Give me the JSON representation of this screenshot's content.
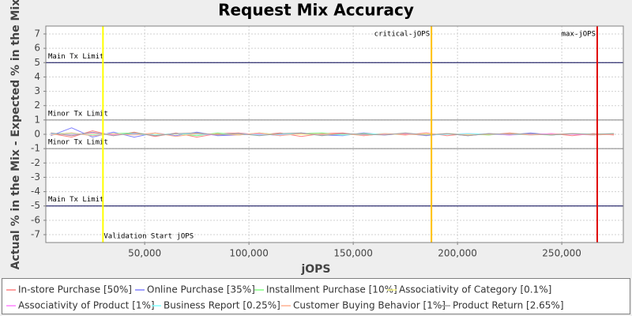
{
  "chart_data": {
    "type": "line",
    "title": "Request Mix Accuracy",
    "x_label": "jOPS",
    "y_label": "Actual % in the Mix - Expected % in the Mix",
    "xlim": [
      2600,
      279500
    ],
    "ylim": [
      -7.55,
      7.55
    ],
    "xticks": [
      {
        "value": 50000,
        "label": "50,000"
      },
      {
        "value": 100000,
        "label": "100,000"
      },
      {
        "value": 150000,
        "label": "150,000"
      },
      {
        "value": 200000,
        "label": "200,000"
      },
      {
        "value": 250000,
        "label": "250,000"
      }
    ],
    "yticks": [
      -7,
      -6,
      -5,
      -4,
      -3,
      -2,
      -1,
      0,
      1,
      2,
      3,
      4,
      5,
      6,
      7
    ],
    "grid": true,
    "x": [
      5000,
      15000,
      25000,
      35000,
      45000,
      55000,
      65000,
      75000,
      85000,
      95000,
      105000,
      115000,
      125000,
      135000,
      145000,
      155000,
      165000,
      175000,
      185000,
      195000,
      205000,
      215000,
      225000,
      235000,
      245000,
      255000,
      265000,
      275000
    ],
    "series": [
      {
        "name": "In-store Purchase [50%]",
        "color": "#ff8080",
        "values": [
          0.05,
          -0.2,
          0.25,
          -0.1,
          0.15,
          -0.15,
          0.1,
          -0.2,
          0.05,
          0.1,
          -0.05,
          0.1,
          -0.15,
          0.05,
          0.1,
          -0.1,
          0.05,
          -0.05,
          0.1,
          -0.1,
          0.05,
          -0.05,
          0.1,
          -0.05,
          0.05,
          -0.1,
          0.05,
          -0.05
        ]
      },
      {
        "name": "Online Purchase [35%]",
        "color": "#8080ff",
        "values": [
          -0.1,
          0.45,
          -0.2,
          0.15,
          -0.2,
          0.1,
          -0.1,
          0.15,
          -0.1,
          -0.05,
          0.05,
          -0.1,
          0.1,
          -0.05,
          -0.1,
          0.1,
          -0.05,
          0.05,
          -0.1,
          0.05,
          -0.1,
          0.05,
          -0.05,
          0.1,
          -0.05,
          0.05,
          -0.05,
          0.05
        ]
      },
      {
        "name": "Installment Purchase [10%]",
        "color": "#80ff80",
        "values": [
          0.0,
          0.1,
          -0.1,
          0.05,
          0.1,
          -0.05,
          0.05,
          -0.1,
          0.1,
          -0.05,
          0.1,
          -0.05,
          0.05,
          0.1,
          -0.05,
          0.05,
          0.0,
          0.05,
          -0.05,
          0.05,
          0.0,
          -0.05,
          0.05,
          0.0,
          -0.05,
          0.05,
          0.0,
          0.05
        ]
      },
      {
        "name": "Associativity of Category [0.1%]",
        "color": "#ffff80",
        "values": [
          0.0,
          0.0,
          0.02,
          0.0,
          -0.02,
          0.0,
          0.01,
          0.0,
          -0.01,
          0.0,
          0.01,
          0.0,
          0.0,
          -0.01,
          0.0,
          0.01,
          0.0,
          0.0,
          0.01,
          0.0,
          -0.01,
          0.0,
          0.0,
          0.01,
          0.0,
          0.0,
          -0.01,
          0.0
        ]
      },
      {
        "name": "Associativity of Product [1%]",
        "color": "#ff80ff",
        "values": [
          0.05,
          -0.05,
          0.1,
          -0.05,
          0.05,
          -0.05,
          0.05,
          0.0,
          -0.05,
          0.05,
          0.0,
          -0.05,
          0.05,
          0.0,
          0.05,
          -0.05,
          0.0,
          0.05,
          -0.05,
          0.0,
          0.05,
          0.0,
          -0.05,
          0.0,
          0.05,
          0.0,
          -0.05,
          0.0
        ]
      },
      {
        "name": "Business Report [0.25%]",
        "color": "#80ffff",
        "values": [
          0.0,
          0.05,
          -0.05,
          0.05,
          0.0,
          -0.05,
          0.05,
          0.0,
          0.0,
          0.05,
          -0.05,
          0.0,
          0.05,
          0.0,
          -0.05,
          0.0,
          0.05,
          0.0,
          -0.05,
          0.0,
          0.05,
          0.0,
          0.0,
          -0.05,
          0.0,
          0.05,
          0.0,
          0.0
        ]
      },
      {
        "name": "Customer Buying Behavior [1%]",
        "color": "#ffb090",
        "values": [
          -0.05,
          0.1,
          -0.1,
          0.05,
          -0.05,
          0.1,
          -0.15,
          0.05,
          0.0,
          -0.05,
          0.1,
          -0.1,
          0.05,
          0.0,
          0.05,
          -0.1,
          0.05,
          0.0,
          -0.05,
          0.05,
          -0.05,
          0.0,
          0.05,
          -0.05,
          0.0,
          0.05,
          -0.05,
          0.0
        ]
      },
      {
        "name": "Product Return [2.65%]",
        "color": "#a0a0a0",
        "values": [
          0.1,
          -0.1,
          0.15,
          -0.1,
          0.1,
          -0.1,
          0.05,
          0.1,
          -0.05,
          0.05,
          -0.1,
          0.05,
          0.1,
          -0.1,
          0.05,
          0.0,
          -0.05,
          0.1,
          -0.05,
          0.05,
          -0.1,
          0.05,
          0.0,
          0.05,
          -0.05,
          0.05,
          0.0,
          0.05
        ]
      }
    ],
    "limits": [
      {
        "label": "Main Tx Limit",
        "value": 5,
        "color": "#000050"
      },
      {
        "label": "Minor Tx Limit",
        "value": 1,
        "color": "#808080"
      },
      {
        "label": "Minor Tx Limit",
        "value": -1,
        "color": "#808080"
      },
      {
        "label": "Main Tx Limit",
        "value": -5,
        "color": "#000050"
      }
    ],
    "markers": [
      {
        "label": "Validation Start jOPS",
        "value": 30000,
        "color": "#ffff00",
        "label_position": "bottom"
      },
      {
        "label": "critical-jOPS",
        "value": 187500,
        "color": "#ffc000",
        "label_position": "top"
      },
      {
        "label": "max-jOPS",
        "value": 267000,
        "color": "#e00000",
        "label_position": "top"
      }
    ]
  }
}
